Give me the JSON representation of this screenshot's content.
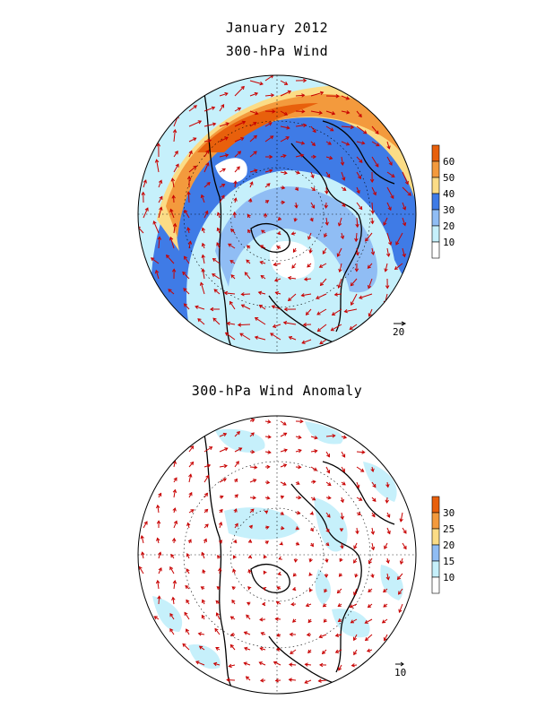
{
  "titles": {
    "month": "January 2012",
    "wind": "300-hPa Wind",
    "anomaly": "300-hPa Wind Anomaly"
  },
  "panels": [
    {
      "id": "wind",
      "colorbar_labels": [
        "60",
        "50",
        "40",
        "30",
        "20",
        "10"
      ],
      "colorbar_colors": [
        "#e8600c",
        "#f39a3d",
        "#fbdc86",
        "#3f7be6",
        "#90bdf4",
        "#c6f0fb",
        "#ffffff"
      ],
      "reference_vector": "20"
    },
    {
      "id": "anomaly",
      "colorbar_labels": [
        "30",
        "25",
        "20",
        "15",
        "10"
      ],
      "colorbar_colors": [
        "#e8600c",
        "#f39a3d",
        "#fbdc86",
        "#90bdf4",
        "#c6f0fb",
        "#ffffff"
      ],
      "reference_vector": "10"
    }
  ],
  "colors": {
    "vector": "#c80000",
    "coast": "#000000",
    "grid": "#000000"
  }
}
